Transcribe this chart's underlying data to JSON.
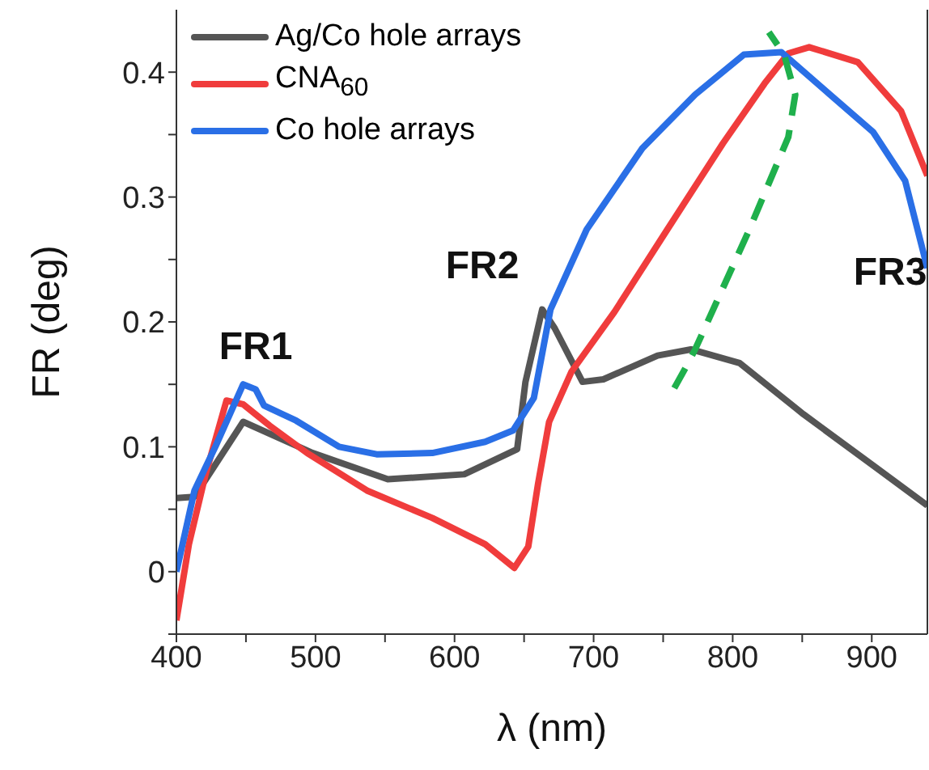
{
  "chart_data": {
    "type": "line",
    "xlabel": "λ (nm)",
    "ylabel": "FR (deg)",
    "xlim": [
      400,
      940
    ],
    "ylim": [
      -0.05,
      0.45
    ],
    "xticks": [
      400,
      {
        "value": 450,
        "label": null
      },
      500,
      {
        "value": 550,
        "label": null
      },
      600,
      {
        "value": 650,
        "label": null
      },
      700,
      {
        "value": 750,
        "label": null
      },
      800,
      {
        "value": 850,
        "label": null
      },
      900
    ],
    "yticks": [
      {
        "value": -0.05,
        "label": null
      },
      0,
      {
        "value": 0.05,
        "label": null
      },
      0.1,
      {
        "value": 0.15,
        "label": null
      },
      0.2,
      {
        "value": 0.25,
        "label": null
      },
      0.3,
      {
        "value": 0.35,
        "label": null
      },
      0.4
    ],
    "legend": "top left",
    "marker": "none",
    "annotations": [
      "FR1",
      "FR2",
      "FR3"
    ],
    "series": [
      {
        "name": "Ag/Co hole arrays",
        "color": "#555555",
        "x": [
          400,
          413,
          448,
          498,
          552,
          607,
          645,
          651,
          663,
          672,
          692,
          707,
          746,
          770,
          805,
          851,
          901,
          940
        ],
        "values": [
          0.059,
          0.06,
          0.12,
          0.095,
          0.074,
          0.078,
          0.098,
          0.152,
          0.21,
          0.195,
          0.152,
          0.154,
          0.173,
          0.178,
          0.167,
          0.126,
          0.085,
          0.053
        ]
      },
      {
        "name": "CNA$_{60}$",
        "color": "#f03c3c",
        "x": [
          400,
          409,
          421,
          436,
          448,
          467,
          494,
          537,
          584,
          622,
          643,
          653,
          660,
          668,
          684,
          715,
          753,
          793,
          823,
          840,
          855,
          890,
          921,
          940
        ],
        "values": [
          -0.039,
          0.022,
          0.078,
          0.137,
          0.134,
          0.117,
          0.095,
          0.065,
          0.043,
          0.022,
          0.003,
          0.02,
          0.07,
          0.12,
          0.16,
          0.208,
          0.274,
          0.343,
          0.391,
          0.415,
          0.42,
          0.408,
          0.369,
          0.317
        ]
      },
      {
        "name": "Co hole arrays",
        "color": "#2a6fe6",
        "x": [
          400,
          413,
          428,
          448,
          457,
          463,
          486,
          517,
          544,
          584,
          622,
          642,
          657,
          669,
          695,
          735,
          773,
          808,
          835,
          870,
          901,
          924,
          940
        ],
        "values": [
          0.0,
          0.065,
          0.1,
          0.15,
          0.146,
          0.133,
          0.121,
          0.1,
          0.094,
          0.095,
          0.104,
          0.113,
          0.139,
          0.21,
          0.274,
          0.339,
          0.382,
          0.414,
          0.416,
          0.382,
          0.352,
          0.313,
          0.243
        ]
      },
      {
        "color": "#1fb04c",
        "line_style": "dashed",
        "x": [
          758,
          767,
          773,
          812,
          840,
          845,
          837,
          826
        ],
        "values": [
          0.147,
          0.165,
          0.178,
          0.274,
          0.348,
          0.382,
          0.414,
          0.432
        ]
      }
    ]
  }
}
